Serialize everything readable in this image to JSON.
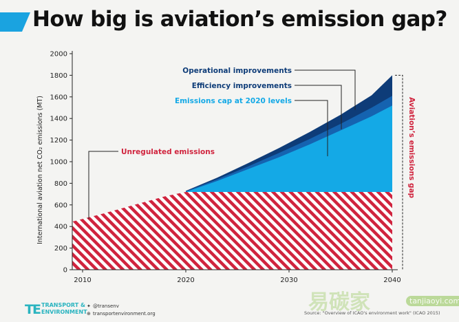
{
  "header": {
    "title": "How big is aviation’s emission gap?",
    "accent_color": "#1aa3e0"
  },
  "colors": {
    "cap": "#14a9e6",
    "efficiency": "#1563b0",
    "operational": "#0e3c78",
    "hatch_red": "#d0243e",
    "gap_label": "#d0243e",
    "dark_label": "#0e3c78",
    "cap_label": "#14a9e6"
  },
  "chart_data": {
    "type": "area",
    "ylabel": "International aviation net CO₂ emissions (MT)",
    "xlim": [
      2009,
      2040
    ],
    "ylim": [
      0,
      2000
    ],
    "yticks": [
      0,
      200,
      400,
      600,
      800,
      1000,
      1200,
      1400,
      1600,
      1800,
      2000
    ],
    "xticks": [
      2010,
      2020,
      2030,
      2040
    ],
    "grid": false,
    "series": [
      {
        "name": "Unregulated emissions",
        "x": [
          2009,
          2012,
          2015,
          2018,
          2020
        ],
        "values": [
          445,
          520,
          600,
          680,
          720
        ]
      },
      {
        "name": "Emissions cap at 2020 levels",
        "x": [
          2020,
          2040
        ],
        "values": [
          720,
          720
        ]
      },
      {
        "name": "Emissions cap at 2020 levels",
        "x": [
          2020,
          2023,
          2026,
          2029,
          2032,
          2035,
          2038,
          2040
        ],
        "values": [
          720,
          820,
          930,
          1040,
          1160,
          1290,
          1420,
          1520
        ]
      },
      {
        "name": "Efficiency improvements",
        "x": [
          2020,
          2023,
          2026,
          2029,
          2032,
          2035,
          2038,
          2040
        ],
        "values": [
          725,
          835,
          955,
          1080,
          1210,
          1350,
          1500,
          1610
        ]
      },
      {
        "name": "Operational improvements",
        "x": [
          2020,
          2023,
          2026,
          2029,
          2032,
          2035,
          2038,
          2040
        ],
        "values": [
          730,
          850,
          985,
          1125,
          1275,
          1435,
          1615,
          1800
        ]
      }
    ],
    "annotations": {
      "operational": "Operational improvements",
      "efficiency": "Efficiency improvements",
      "cap": "Emissions cap at 2020 levels",
      "unregulated": "Unregulated emissions",
      "gap": "Aviation’s emissions gap"
    }
  },
  "footer": {
    "logo_mark": "TE",
    "logo_text": "TRANSPORT &\nENVIRONMENT",
    "twitter": "@transenv",
    "website": "transportenvironment.org",
    "source": "Source: \"Overview of ICAO's environment work\" (ICAO 2015)"
  },
  "watermark": {
    "text": "易碳家",
    "url": "tanjiaoyi.com"
  }
}
